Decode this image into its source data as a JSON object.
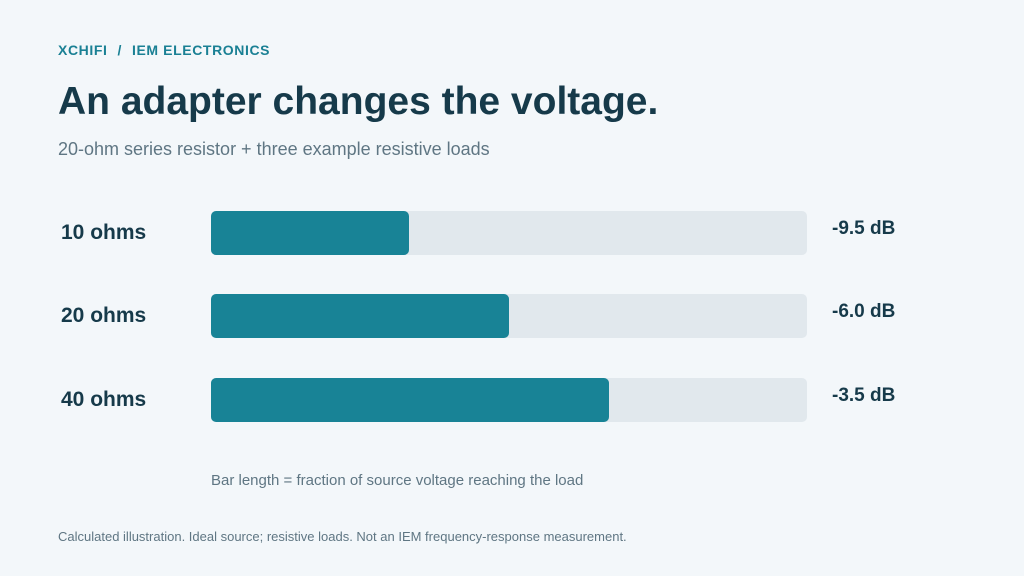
{
  "breadcrumb": {
    "brand": "XCHIFI",
    "separator": "/",
    "section": "IEM ELECTRONICS"
  },
  "title": "An adapter changes the voltage.",
  "subtitle": "20-ohm series resistor + three example resistive loads",
  "axis_note": "Bar length = fraction of source voltage reaching the load",
  "footnote": "Calculated illustration. Ideal source; resistive loads. Not an IEM frequency-response measurement.",
  "colors": {
    "accent": "#188396",
    "track": "#e1e8ed",
    "text": "#163a4a",
    "muted": "#5f7683",
    "background": "#f3f7fa"
  },
  "chart_data": {
    "type": "bar",
    "orientation": "horizontal",
    "categories": [
      "10 ohms",
      "20 ohms",
      "40 ohms"
    ],
    "values": [
      0.333,
      0.5,
      0.667
    ],
    "xlim": [
      0,
      1
    ],
    "data_labels": [
      "-9.5 dB",
      "-6.0 dB",
      "-3.5 dB"
    ],
    "grid": false
  }
}
